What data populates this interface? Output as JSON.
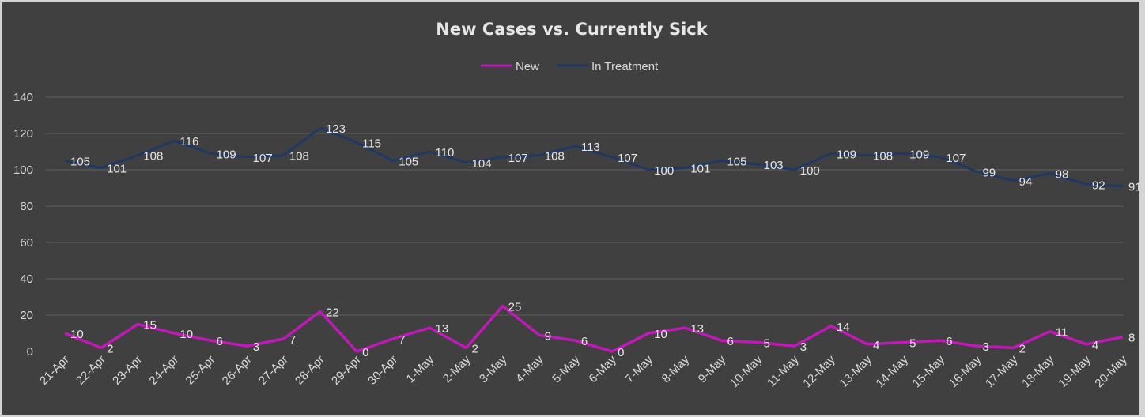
{
  "chart_data": {
    "type": "line",
    "title": "New Cases vs. Currently Sick",
    "xlabel": "",
    "ylabel": "",
    "ylim": [
      0,
      140
    ],
    "yticks": [
      0,
      20,
      40,
      60,
      80,
      100,
      120,
      140
    ],
    "grid": true,
    "legend_position": "top",
    "background_color": "#404040",
    "gridline_color": "#595959",
    "categories": [
      "21-Apr",
      "22-Apr",
      "23-Apr",
      "24-Apr",
      "25-Apr",
      "26-Apr",
      "27-Apr",
      "28-Apr",
      "29-Apr",
      "30-Apr",
      "1-May",
      "2-May",
      "3-May",
      "4-May",
      "5-May",
      "6-May",
      "7-May",
      "8-May",
      "9-May",
      "10-May",
      "11-May",
      "12-May",
      "13-May",
      "14-May",
      "15-May",
      "16-May",
      "17-May",
      "18-May",
      "19-May",
      "20-May"
    ],
    "series": [
      {
        "name": "New",
        "color": "#c019b8",
        "values": [
          10,
          2,
          15,
          10,
          6,
          3,
          7,
          22,
          0,
          7,
          13,
          2,
          25,
          9,
          6,
          0,
          10,
          13,
          6,
          5,
          3,
          14,
          4,
          5,
          6,
          3,
          2,
          11,
          4,
          8
        ]
      },
      {
        "name": "In Treatment",
        "color": "#203864",
        "values": [
          105,
          101,
          108,
          116,
          109,
          107,
          108,
          123,
          115,
          105,
          110,
          104,
          107,
          108,
          113,
          107,
          100,
          101,
          105,
          103,
          100,
          109,
          108,
          109,
          107,
          99,
          94,
          98,
          92,
          91
        ]
      }
    ]
  }
}
